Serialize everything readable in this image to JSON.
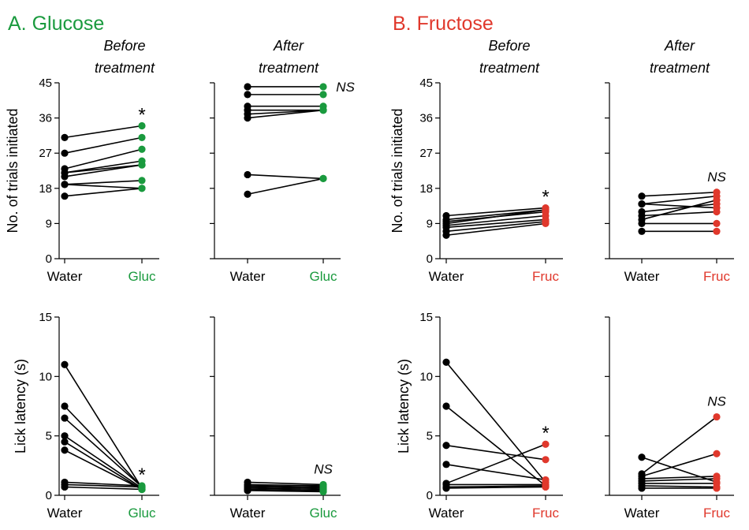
{
  "colors": {
    "glucose": "#1a9a3e",
    "fructose": "#e0382c",
    "ink": "#000000"
  },
  "chart_data": [
    {
      "type": "scatter",
      "id": "a-trials-before",
      "title": "A. Glucose",
      "header": [
        "Before",
        "treatment"
      ],
      "ylabel": "No. of trials initiated",
      "ylim": [
        0,
        45
      ],
      "yticks": [
        "0",
        "9",
        "18",
        "27",
        "36",
        "45"
      ],
      "categories": [
        "Water",
        "Gluc"
      ],
      "annotation": "*",
      "pairs": [
        [
          31,
          34
        ],
        [
          27,
          31
        ],
        [
          23,
          28
        ],
        [
          22,
          25
        ],
        [
          21,
          24
        ],
        [
          22,
          24
        ],
        [
          19,
          20
        ],
        [
          16,
          18
        ],
        [
          19,
          18
        ]
      ]
    },
    {
      "type": "scatter",
      "id": "a-trials-after",
      "header": [
        "After",
        "treatment"
      ],
      "ylim": [
        0,
        45
      ],
      "yticks": [
        "",
        "",
        "",
        "",
        "",
        ""
      ],
      "categories": [
        "Water",
        "Gluc"
      ],
      "annotation": "NS",
      "pairs": [
        [
          44,
          44
        ],
        [
          42,
          42
        ],
        [
          39,
          39
        ],
        [
          38,
          38
        ],
        [
          37,
          38
        ],
        [
          36,
          38
        ],
        [
          21.5,
          20.5
        ],
        [
          16.5,
          20.5
        ]
      ]
    },
    {
      "type": "scatter",
      "id": "a-latency-before",
      "ylabel": "Lick latency (s)",
      "ylim": [
        0,
        15
      ],
      "yticks": [
        "0",
        "5",
        "10",
        "15"
      ],
      "categories": [
        "Water",
        "Gluc"
      ],
      "annotation": "*",
      "pairs": [
        [
          11.0,
          0.6
        ],
        [
          7.5,
          0.7
        ],
        [
          6.5,
          0.7
        ],
        [
          5.0,
          0.6
        ],
        [
          4.5,
          0.5
        ],
        [
          3.8,
          0.5
        ],
        [
          1.1,
          0.8
        ],
        [
          0.9,
          0.7
        ],
        [
          0.7,
          0.5
        ]
      ]
    },
    {
      "type": "scatter",
      "id": "a-latency-after",
      "ylim": [
        0,
        15
      ],
      "yticks": [
        "",
        "",
        "",
        ""
      ],
      "categories": [
        "Water",
        "Gluc"
      ],
      "annotation": "NS",
      "pairs": [
        [
          1.1,
          0.9
        ],
        [
          0.9,
          0.8
        ],
        [
          0.8,
          0.7
        ],
        [
          0.7,
          0.6
        ],
        [
          0.6,
          0.5
        ],
        [
          0.5,
          0.4
        ],
        [
          0.4,
          0.3
        ]
      ]
    },
    {
      "type": "scatter",
      "id": "b-trials-before",
      "title": "B. Fructose",
      "header": [
        "Before",
        "treatment"
      ],
      "ylabel": "No. of trials initiated",
      "ylim": [
        0,
        45
      ],
      "yticks": [
        "0",
        "9",
        "18",
        "27",
        "36",
        "45"
      ],
      "categories": [
        "Water",
        "Fruc"
      ],
      "annotation": "*",
      "pairs": [
        [
          11,
          13
        ],
        [
          10,
          12.5
        ],
        [
          9.5,
          12
        ],
        [
          9,
          12.5
        ],
        [
          8.5,
          11
        ],
        [
          8,
          10
        ],
        [
          7,
          9.5
        ],
        [
          6,
          9
        ]
      ]
    },
    {
      "type": "scatter",
      "id": "b-trials-after",
      "header": [
        "After",
        "treatment"
      ],
      "ylim": [
        0,
        45
      ],
      "yticks": [
        "",
        "",
        "",
        "",
        "",
        ""
      ],
      "categories": [
        "Water",
        "Fruc"
      ],
      "annotation": "NS",
      "pairs": [
        [
          16,
          17
        ],
        [
          14,
          16
        ],
        [
          14,
          13
        ],
        [
          12,
          14
        ],
        [
          11,
          12
        ],
        [
          10,
          15
        ],
        [
          9,
          9
        ],
        [
          7,
          7
        ]
      ]
    },
    {
      "type": "scatter",
      "id": "b-latency-before",
      "ylabel": "Lick latency (s)",
      "ylim": [
        0,
        15
      ],
      "yticks": [
        "0",
        "5",
        "10",
        "15"
      ],
      "categories": [
        "Water",
        "Fruc"
      ],
      "annotation": "*",
      "pairs": [
        [
          11.2,
          1.1
        ],
        [
          7.5,
          0.8
        ],
        [
          4.2,
          3.0
        ],
        [
          2.6,
          1.3
        ],
        [
          1.0,
          4.3
        ],
        [
          0.9,
          0.9
        ],
        [
          0.7,
          0.8
        ],
        [
          0.6,
          0.7
        ]
      ]
    },
    {
      "type": "scatter",
      "id": "b-latency-after",
      "ylim": [
        0,
        15
      ],
      "yticks": [
        "",
        "",
        "",
        ""
      ],
      "categories": [
        "Water",
        "Fruc"
      ],
      "annotation": "NS",
      "pairs": [
        [
          3.2,
          1.1
        ],
        [
          1.8,
          6.6
        ],
        [
          1.6,
          3.5
        ],
        [
          1.4,
          1.6
        ],
        [
          1.2,
          1.4
        ],
        [
          1.0,
          1.0
        ],
        [
          0.8,
          0.7
        ],
        [
          0.6,
          0.6
        ]
      ]
    }
  ]
}
